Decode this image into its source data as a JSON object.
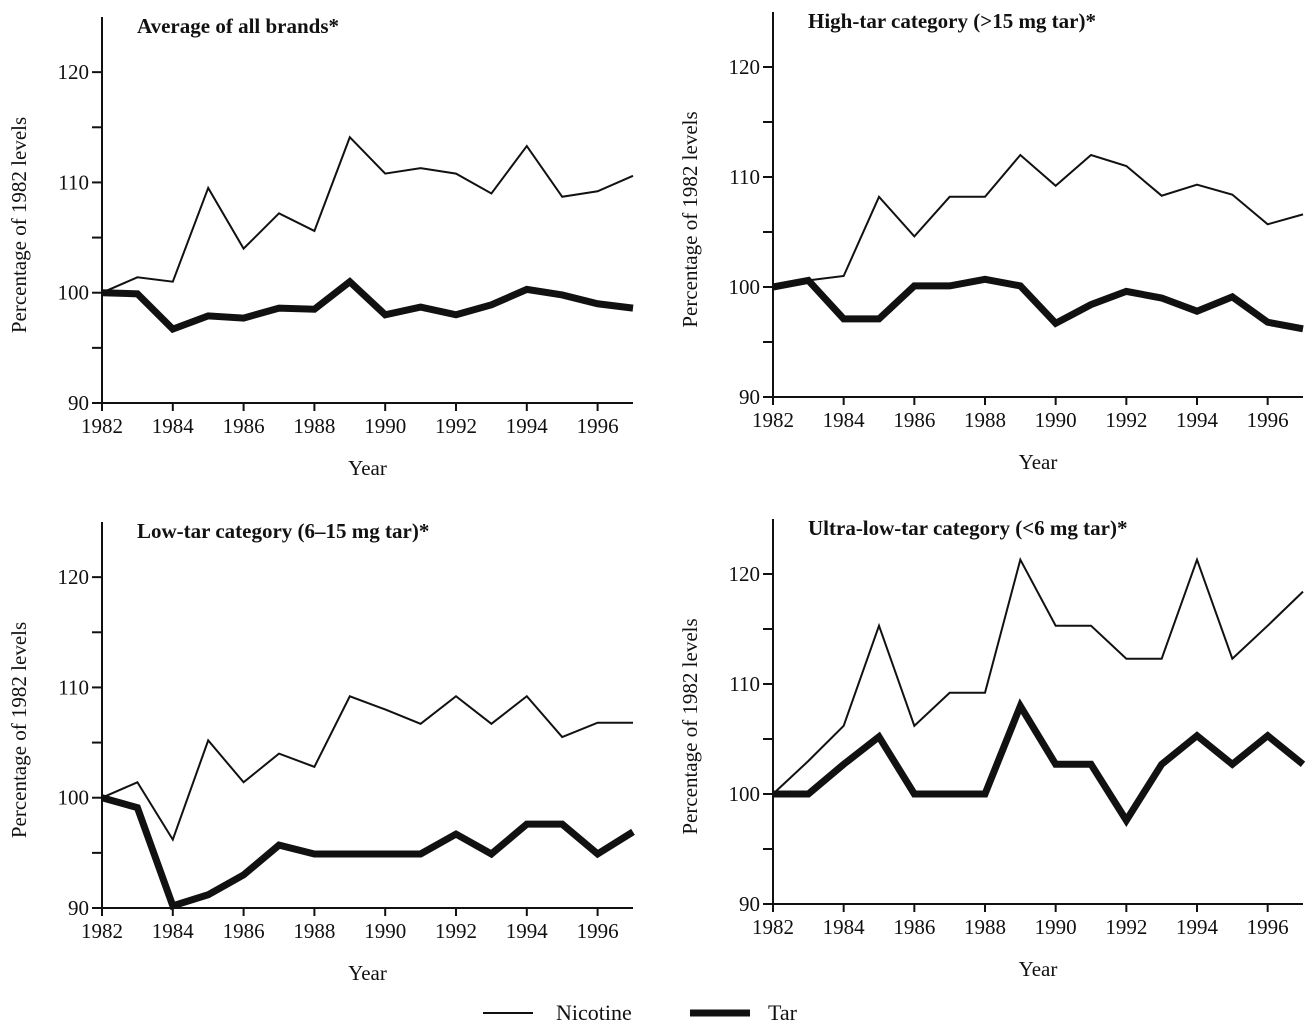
{
  "chart_data": [
    {
      "type": "line",
      "title": "Average of all brands*",
      "xlabel": "Year",
      "ylabel": "Percentage of 1982 levels",
      "x": [
        1982,
        1983,
        1984,
        1985,
        1986,
        1987,
        1988,
        1989,
        1990,
        1991,
        1992,
        1993,
        1994,
        1995,
        1996,
        1997
      ],
      "series": [
        {
          "name": "Nicotine",
          "color": "#111111",
          "width": 2,
          "values": [
            100,
            101.4,
            101,
            109.5,
            104,
            107.2,
            105.6,
            114.1,
            110.8,
            111.3,
            110.8,
            109,
            113.3,
            108.7,
            109.2,
            110.6
          ]
        },
        {
          "name": "Tar",
          "color": "#111111",
          "width": 7,
          "values": [
            100,
            99.9,
            96.7,
            97.9,
            97.7,
            98.6,
            98.5,
            101,
            98,
            98.7,
            98,
            98.9,
            100.3,
            99.8,
            99,
            98.6
          ]
        }
      ],
      "xlim": [
        1982,
        1997
      ],
      "ylim": [
        90,
        125
      ],
      "xticks": [
        1982,
        1984,
        1986,
        1988,
        1990,
        1992,
        1994,
        1996
      ],
      "yticks": [
        90,
        100,
        110,
        120
      ],
      "minor_yticks": [
        95,
        105,
        115
      ]
    },
    {
      "type": "line",
      "title": "High-tar category (>15 mg tar)*",
      "xlabel": "Year",
      "ylabel": "Percentage of 1982 levels",
      "x": [
        1982,
        1983,
        1984,
        1985,
        1986,
        1987,
        1988,
        1989,
        1990,
        1991,
        1992,
        1993,
        1994,
        1995,
        1996,
        1997
      ],
      "series": [
        {
          "name": "Nicotine",
          "color": "#111111",
          "width": 2,
          "values": [
            100,
            100.6,
            101,
            108.2,
            104.6,
            108.2,
            108.2,
            112,
            109.2,
            112,
            111,
            108.3,
            109.3,
            108.4,
            105.7,
            106.6
          ]
        },
        {
          "name": "Tar",
          "color": "#111111",
          "width": 7,
          "values": [
            100,
            100.6,
            97.1,
            97.1,
            100.1,
            100.1,
            100.7,
            100.1,
            96.7,
            98.4,
            99.6,
            99,
            97.8,
            99.1,
            96.8,
            96.2
          ]
        }
      ],
      "xlim": [
        1982,
        1997
      ],
      "ylim": [
        90,
        125
      ],
      "xticks": [
        1982,
        1984,
        1986,
        1988,
        1990,
        1992,
        1994,
        1996
      ],
      "yticks": [
        90,
        100,
        110,
        120
      ],
      "minor_yticks": [
        95,
        105,
        115
      ]
    },
    {
      "type": "line",
      "title": "Low-tar category (6–15 mg tar)*",
      "xlabel": "Year",
      "ylabel": "Percentage of 1982 levels",
      "x": [
        1982,
        1983,
        1984,
        1985,
        1986,
        1987,
        1988,
        1989,
        1990,
        1991,
        1992,
        1993,
        1994,
        1995,
        1996,
        1997
      ],
      "series": [
        {
          "name": "Nicotine",
          "color": "#111111",
          "width": 2,
          "values": [
            100,
            101.4,
            96.2,
            105.2,
            101.4,
            104,
            102.8,
            109.2,
            108,
            106.7,
            109.2,
            106.7,
            109.2,
            105.5,
            106.8,
            106.8
          ]
        },
        {
          "name": "Tar",
          "color": "#111111",
          "width": 7,
          "values": [
            100,
            99.1,
            90.2,
            91.2,
            93,
            95.7,
            94.9,
            94.9,
            94.9,
            94.9,
            96.7,
            94.9,
            97.6,
            97.6,
            94.9,
            96.9
          ]
        }
      ],
      "xlim": [
        1982,
        1997
      ],
      "ylim": [
        90,
        125
      ],
      "xticks": [
        1982,
        1984,
        1986,
        1988,
        1990,
        1992,
        1994,
        1996
      ],
      "yticks": [
        90,
        100,
        110,
        120
      ],
      "minor_yticks": [
        95,
        105,
        115
      ]
    },
    {
      "type": "line",
      "title": "Ultra-low-tar category (<6 mg tar)*",
      "xlabel": "Year",
      "ylabel": "Percentage of 1982 levels",
      "x": [
        1982,
        1983,
        1984,
        1985,
        1986,
        1987,
        1988,
        1989,
        1990,
        1991,
        1992,
        1993,
        1994,
        1995,
        1996,
        1997
      ],
      "series": [
        {
          "name": "Nicotine",
          "color": "#111111",
          "width": 2,
          "values": [
            100,
            103,
            106.2,
            115.3,
            106.2,
            109.2,
            109.2,
            121.3,
            115.3,
            115.3,
            112.3,
            112.3,
            121.3,
            112.3,
            115.3,
            118.4
          ]
        },
        {
          "name": "Tar",
          "color": "#111111",
          "width": 7,
          "values": [
            100,
            100,
            102.7,
            105.2,
            100,
            100,
            100,
            108,
            102.7,
            102.7,
            97.6,
            102.7,
            105.3,
            102.7,
            105.3,
            102.7
          ]
        }
      ],
      "xlim": [
        1982,
        1997
      ],
      "ylim": [
        90,
        125
      ],
      "xticks": [
        1982,
        1984,
        1986,
        1988,
        1990,
        1992,
        1994,
        1996
      ],
      "yticks": [
        90,
        100,
        110,
        120
      ],
      "minor_yticks": [
        95,
        105,
        115
      ]
    }
  ]
}
